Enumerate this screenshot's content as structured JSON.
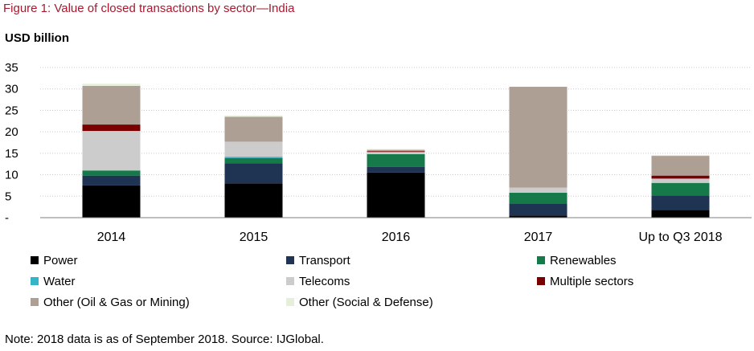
{
  "title": "Figure 1: Value of closed transactions by sector—India",
  "note": "Note: 2018 data is as of September 2018. Source: IJGlobal.",
  "chart_data": {
    "type": "bar",
    "stacked": true,
    "title": "Figure 1: Value of closed transactions by sector—India",
    "ylabel": "USD billion",
    "xlabel": "",
    "ylim": [
      0,
      35
    ],
    "yticks": [
      0,
      5,
      10,
      15,
      20,
      25,
      30,
      35
    ],
    "ytick_labels": [
      "-",
      "5",
      "10",
      "15",
      "20",
      "25",
      "30",
      "35"
    ],
    "grid": "horizontal dotted",
    "legend_position": "bottom",
    "categories": [
      "2014",
      "2015",
      "2016",
      "2017",
      "Up to Q3 2018"
    ],
    "series": [
      {
        "name": "Power",
        "color": "#000000",
        "values": [
          7.5,
          8.0,
          10.5,
          0.5,
          1.8
        ]
      },
      {
        "name": "Transport",
        "color": "#1f3352",
        "values": [
          2.3,
          4.7,
          1.3,
          2.8,
          3.4
        ]
      },
      {
        "name": "Renewables",
        "color": "#16794a",
        "values": [
          1.2,
          1.2,
          3.0,
          2.5,
          2.9
        ]
      },
      {
        "name": "Water",
        "color": "#31b5c7",
        "values": [
          0.0,
          0.3,
          0.0,
          0.0,
          0.0
        ]
      },
      {
        "name": "Telecoms",
        "color": "#cccccc",
        "values": [
          9.2,
          3.5,
          0.5,
          1.2,
          1.0
        ]
      },
      {
        "name": "Multiple sectors",
        "color": "#7a0000",
        "values": [
          1.5,
          0.0,
          0.2,
          0.0,
          0.7
        ]
      },
      {
        "name": "Other (Oil & Gas or Mining)",
        "color": "#ae9f95",
        "values": [
          9.0,
          5.8,
          0.3,
          23.5,
          4.6
        ]
      },
      {
        "name": "Other (Social & Defense)",
        "color": "#e6eedc",
        "values": [
          0.5,
          0.3,
          0.2,
          0.0,
          0.2
        ]
      }
    ]
  }
}
